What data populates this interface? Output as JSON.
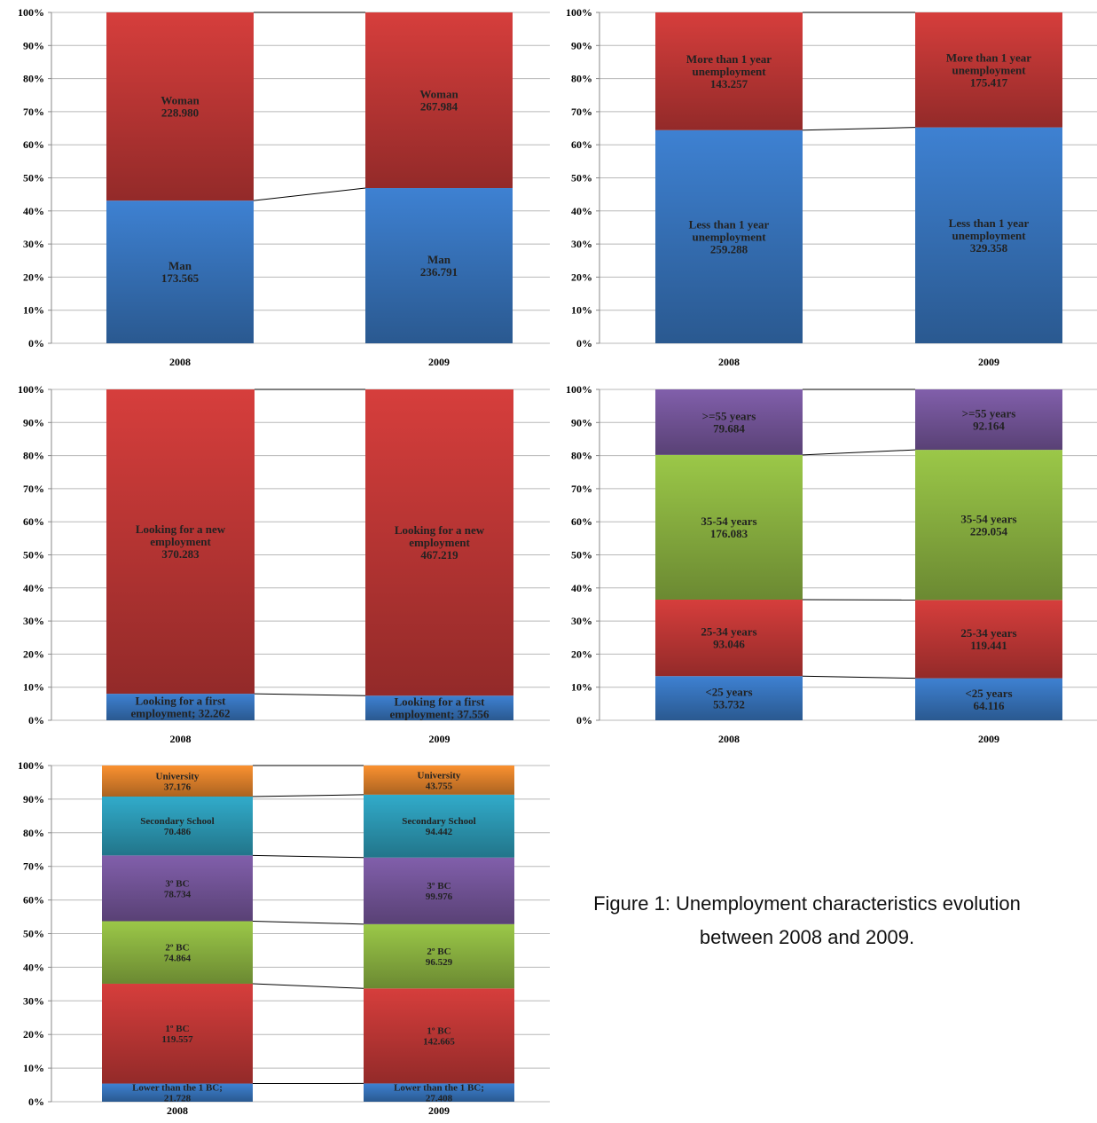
{
  "caption": {
    "line1": "Figure 1: Unemployment characteristics evolution",
    "line2": "between 2008 and 2009."
  },
  "colors": {
    "blue": "#3B7BC8",
    "red": "#CC3B39",
    "green": "#94BE45",
    "purple": "#7B5AA3",
    "teal": "#2FA3C0",
    "orange": "#EE8A2E"
  },
  "chart_data": [
    {
      "type": "bar",
      "stacked": "100%",
      "categories": [
        "2008",
        "2009"
      ],
      "yticks": [
        "0%",
        "10%",
        "20%",
        "30%",
        "40%",
        "50%",
        "60%",
        "70%",
        "80%",
        "90%",
        "100%"
      ],
      "series": [
        {
          "name": "Man",
          "color": "blue",
          "values": [
            173565,
            236791
          ],
          "labels": [
            [
              "Man",
              "173.565"
            ],
            [
              "Man",
              "236.791"
            ]
          ]
        },
        {
          "name": "Woman",
          "color": "red",
          "values": [
            228980,
            267984
          ],
          "labels": [
            [
              "Woman",
              "228.980"
            ],
            [
              "Woman",
              "267.984"
            ]
          ]
        }
      ]
    },
    {
      "type": "bar",
      "stacked": "100%",
      "categories": [
        "2008",
        "2009"
      ],
      "yticks": [
        "0%",
        "10%",
        "20%",
        "30%",
        "40%",
        "50%",
        "60%",
        "70%",
        "80%",
        "90%",
        "100%"
      ],
      "series": [
        {
          "name": "Less than 1 year unemployment",
          "color": "blue",
          "values": [
            259288,
            329358
          ],
          "labels": [
            [
              "Less than 1 year",
              "unemployment",
              "259.288"
            ],
            [
              "Less than 1 year",
              "unemployment",
              "329.358"
            ]
          ]
        },
        {
          "name": "More than 1 year unemployment",
          "color": "red",
          "values": [
            143257,
            175417
          ],
          "labels": [
            [
              "More than 1 year",
              "unemployment",
              "143.257"
            ],
            [
              "More than 1 year",
              "unemployment",
              "175.417"
            ]
          ]
        }
      ]
    },
    {
      "type": "bar",
      "stacked": "100%",
      "categories": [
        "2008",
        "2009"
      ],
      "yticks": [
        "0%",
        "10%",
        "20%",
        "30%",
        "40%",
        "50%",
        "60%",
        "70%",
        "80%",
        "90%",
        "100%"
      ],
      "series": [
        {
          "name": "Looking for a first employment",
          "color": "blue",
          "values": [
            32262,
            37556
          ],
          "labels": [
            [
              "Looking for a first",
              "employment; 32.262"
            ],
            [
              "Looking for a first",
              "employment; 37.556"
            ]
          ]
        },
        {
          "name": "Looking for a new employment",
          "color": "red",
          "values": [
            370283,
            467219
          ],
          "labels": [
            [
              "Looking for a new",
              "employment",
              "370.283"
            ],
            [
              "Looking for a new",
              "employment",
              "467.219"
            ]
          ]
        }
      ]
    },
    {
      "type": "bar",
      "stacked": "100%",
      "categories": [
        "2008",
        "2009"
      ],
      "yticks": [
        "0%",
        "10%",
        "20%",
        "30%",
        "40%",
        "50%",
        "60%",
        "70%",
        "80%",
        "90%",
        "100%"
      ],
      "series": [
        {
          "name": "<25 years",
          "color": "blue",
          "values": [
            53732,
            64116
          ],
          "labels": [
            [
              "<25 years",
              "53.732"
            ],
            [
              "<25 years",
              "64.116"
            ]
          ]
        },
        {
          "name": "25-34 years",
          "color": "red",
          "values": [
            93046,
            119441
          ],
          "labels": [
            [
              "25-34 years",
              "93.046"
            ],
            [
              "25-34 years",
              "119.441"
            ]
          ]
        },
        {
          "name": "35-54 years",
          "color": "green",
          "values": [
            176083,
            229054
          ],
          "labels": [
            [
              "35-54 years",
              "176.083"
            ],
            [
              "35-54 years",
              "229.054"
            ]
          ]
        },
        {
          "name": ">=55 years",
          "color": "purple",
          "values": [
            79684,
            92164
          ],
          "labels": [
            [
              ">=55 years",
              "79.684"
            ],
            [
              ">=55 years",
              "92.164"
            ]
          ]
        }
      ]
    },
    {
      "type": "bar",
      "stacked": "100%",
      "categories": [
        "2008",
        "2009"
      ],
      "yticks": [
        "0%",
        "10%",
        "20%",
        "30%",
        "40%",
        "50%",
        "60%",
        "70%",
        "80%",
        "90%",
        "100%"
      ],
      "series": [
        {
          "name": "Lower than the 1 BC",
          "color": "blue",
          "values": [
            21728,
            27408
          ],
          "labels": [
            [
              "Lower than the 1 BC;",
              "21.728"
            ],
            [
              "Lower than the 1 BC;",
              "27.408"
            ]
          ]
        },
        {
          "name": "1º BC",
          "color": "red",
          "values": [
            119557,
            142665
          ],
          "labels": [
            [
              "1º BC",
              "119.557"
            ],
            [
              "1º BC",
              "142.665"
            ]
          ]
        },
        {
          "name": "2º BC",
          "color": "green",
          "values": [
            74864,
            96529
          ],
          "labels": [
            [
              "2º BC",
              "74.864"
            ],
            [
              "2º BC",
              "96.529"
            ]
          ]
        },
        {
          "name": "3º BC",
          "color": "purple",
          "values": [
            78734,
            99976
          ],
          "labels": [
            [
              "3º BC",
              "78.734"
            ],
            [
              "3º BC",
              "99.976"
            ]
          ]
        },
        {
          "name": "Secondary School",
          "color": "teal",
          "values": [
            70486,
            94442
          ],
          "labels": [
            [
              "Secondary School",
              "70.486"
            ],
            [
              "Secondary School",
              "94.442"
            ]
          ]
        },
        {
          "name": "University",
          "color": "orange",
          "values": [
            37176,
            43755
          ],
          "labels": [
            [
              "University",
              "37.176"
            ],
            [
              "University",
              "43.755"
            ]
          ]
        }
      ]
    }
  ]
}
